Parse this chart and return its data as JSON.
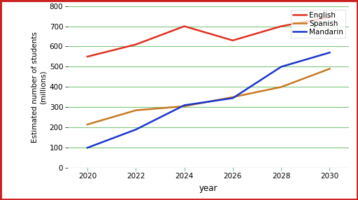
{
  "years": [
    2020,
    2022,
    2024,
    2026,
    2028,
    2030
  ],
  "english": [
    550,
    610,
    700,
    630,
    700,
    745
  ],
  "spanish": [
    215,
    285,
    305,
    350,
    400,
    490
  ],
  "mandarin": [
    100,
    190,
    310,
    345,
    500,
    570
  ],
  "english_color": "#e03020",
  "spanish_color": "#c87820",
  "mandarin_color": "#1a35cc",
  "grid_color": "#7dc87d",
  "background_color": "#ffffff",
  "border_color": "#cc2020",
  "xlabel": "year",
  "ylabel_line1": "Estimated number of students",
  "ylabel_line2": "(millions)",
  "ylim": [
    0,
    800
  ],
  "xlim": [
    2019.2,
    2030.8
  ],
  "xticks": [
    2020,
    2022,
    2024,
    2026,
    2028,
    2030
  ],
  "yticks": [
    0,
    100,
    200,
    300,
    400,
    500,
    600,
    700,
    800
  ],
  "legend_labels": [
    "English",
    "Spanish",
    "Mandarin"
  ],
  "linewidth": 1.8
}
